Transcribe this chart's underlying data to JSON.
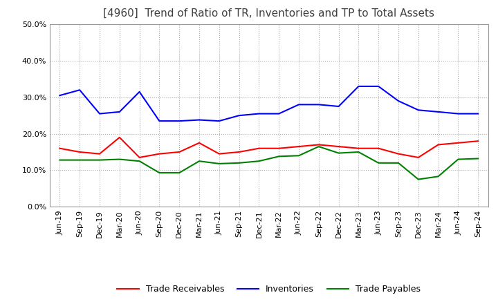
{
  "title": "[4960]  Trend of Ratio of TR, Inventories and TP to Total Assets",
  "ylim": [
    0.0,
    0.5
  ],
  "yticks": [
    0.0,
    0.1,
    0.2,
    0.3,
    0.4,
    0.5
  ],
  "x_labels": [
    "Jun-19",
    "Sep-19",
    "Dec-19",
    "Mar-20",
    "Jun-20",
    "Sep-20",
    "Dec-20",
    "Mar-21",
    "Jun-21",
    "Sep-21",
    "Dec-21",
    "Mar-22",
    "Jun-22",
    "Sep-22",
    "Dec-22",
    "Mar-23",
    "Jun-23",
    "Sep-23",
    "Dec-23",
    "Mar-24",
    "Jun-24",
    "Sep-24"
  ],
  "trade_receivables": [
    0.16,
    0.15,
    0.145,
    0.19,
    0.135,
    0.145,
    0.15,
    0.175,
    0.145,
    0.15,
    0.16,
    0.16,
    0.165,
    0.17,
    0.165,
    0.16,
    0.16,
    0.145,
    0.135,
    0.17,
    0.175,
    0.18
  ],
  "inventories": [
    0.305,
    0.32,
    0.255,
    0.26,
    0.315,
    0.235,
    0.235,
    0.238,
    0.235,
    0.25,
    0.255,
    0.255,
    0.28,
    0.28,
    0.275,
    0.33,
    0.33,
    0.29,
    0.265,
    0.26,
    0.255,
    0.255
  ],
  "trade_payables": [
    0.128,
    0.128,
    0.128,
    0.13,
    0.125,
    0.093,
    0.093,
    0.125,
    0.118,
    0.12,
    0.125,
    0.138,
    0.14,
    0.165,
    0.147,
    0.15,
    0.12,
    0.12,
    0.075,
    0.083,
    0.13,
    0.132
  ],
  "tr_color": "#ff0000",
  "inv_color": "#0000ff",
  "tp_color": "#008000",
  "legend_labels": [
    "Trade Receivables",
    "Inventories",
    "Trade Payables"
  ],
  "background_color": "#ffffff",
  "grid_color": "#aaaaaa",
  "title_fontsize": 11,
  "axis_fontsize": 8,
  "legend_fontsize": 9
}
